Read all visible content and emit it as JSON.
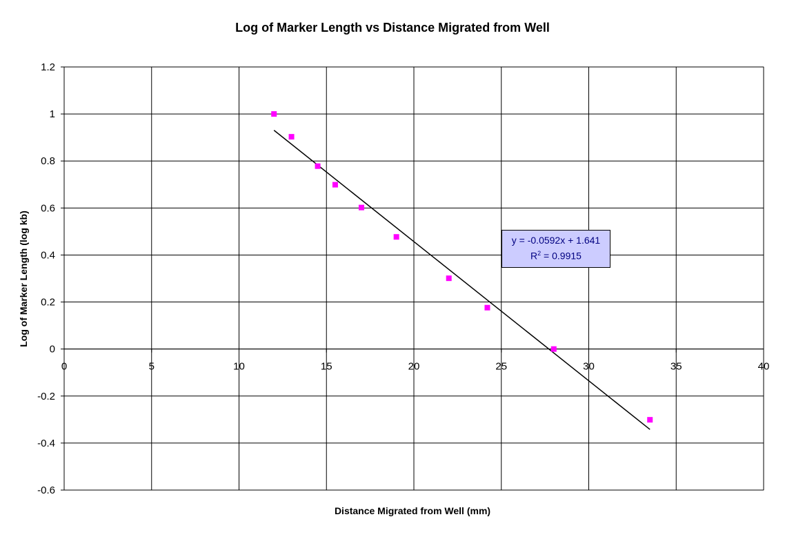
{
  "chart_data": {
    "type": "scatter",
    "title": "Log of Marker Length vs Distance Migrated from Well",
    "xlabel": "Distance Migrated from Well (mm)",
    "ylabel": "Log of Marker Length (log kb)",
    "xlim": [
      0,
      40
    ],
    "ylim": [
      -0.6,
      1.2
    ],
    "xticks": [
      "0",
      "5",
      "10",
      "15",
      "20",
      "25",
      "30",
      "35",
      "40"
    ],
    "yticks": [
      "1.2",
      "1",
      "0.8",
      "0.6",
      "0.4",
      "0.2",
      "0",
      "-0.2",
      "-0.4",
      "-0.6"
    ],
    "grid": true,
    "legend": "none",
    "marker_color": "#ff00ff",
    "points": [
      {
        "x": 12,
        "y": 1.0
      },
      {
        "x": 13,
        "y": 0.903
      },
      {
        "x": 14.5,
        "y": 0.778
      },
      {
        "x": 15.5,
        "y": 0.699
      },
      {
        "x": 17,
        "y": 0.602
      },
      {
        "x": 19,
        "y": 0.477
      },
      {
        "x": 22,
        "y": 0.301
      },
      {
        "x": 24.2,
        "y": 0.176
      },
      {
        "x": 28,
        "y": 0.0
      },
      {
        "x": 33.5,
        "y": -0.301
      }
    ],
    "trendline": {
      "slope": -0.0592,
      "intercept": 1.641,
      "x_range": [
        12,
        33.5
      ],
      "color": "#000000",
      "equation_text": "y = -0.0592x + 1.641",
      "r2_prefix": "R",
      "r2_sup": "2",
      "r2_value_text": " = 0.9915",
      "box_color": "#ccccff",
      "text_color": "#000080"
    }
  }
}
